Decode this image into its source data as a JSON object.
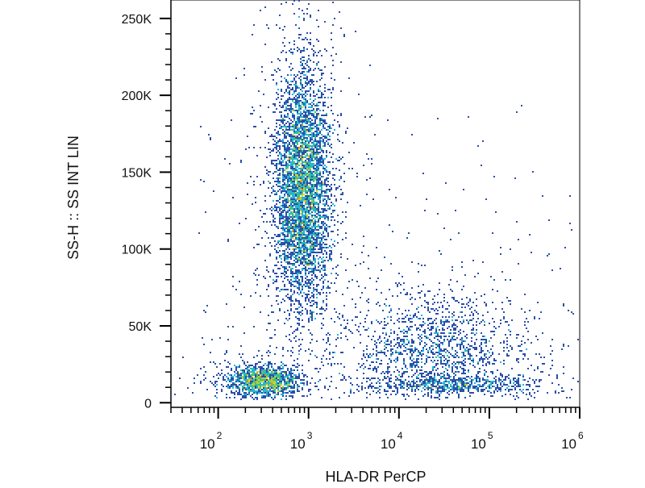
{
  "chart_data": {
    "type": "scatter",
    "subtype": "flow-cytometry-density-dot-plot",
    "title": "",
    "xlabel": "HLA-DR PerCP",
    "ylabel": "SS-H :: SS INT LIN",
    "x_scale": "log",
    "x_range": [
      30,
      1000000
    ],
    "y_scale": "linear",
    "y_range": [
      -3000,
      262000
    ],
    "x_tick_labels": [
      {
        "value": 100,
        "base": "10",
        "exp": "2"
      },
      {
        "value": 1000,
        "base": "10",
        "exp": "3"
      },
      {
        "value": 10000,
        "base": "10",
        "exp": "4"
      },
      {
        "value": 100000,
        "base": "10",
        "exp": "5"
      },
      {
        "value": 1000000,
        "base": "10",
        "exp": "6"
      }
    ],
    "y_tick_labels": [
      {
        "value": 0,
        "label": "0"
      },
      {
        "value": 50000,
        "label": "50K"
      },
      {
        "value": 100000,
        "label": "100K"
      },
      {
        "value": 150000,
        "label": "150K"
      },
      {
        "value": 200000,
        "label": "200K"
      },
      {
        "value": 250000,
        "label": "250K"
      }
    ],
    "density_colors": [
      "#2a4fa8",
      "#3f7fd6",
      "#27b4d8",
      "#37c38a",
      "#b5d334",
      "#f3d21b",
      "#f08a1c",
      "#e02817"
    ],
    "populations": [
      {
        "x_center": 850,
        "y_center": 140000,
        "x_log_sd": 0.15,
        "y_sd": 38000,
        "count": 5000,
        "peak": [
          900,
          135000
        ]
      },
      {
        "x_center": 320,
        "y_center": 14000,
        "x_log_sd": 0.2,
        "y_sd": 5000,
        "count": 1400,
        "peak": [
          330,
          13000
        ]
      },
      {
        "x_center": 25000,
        "y_center": 35000,
        "x_log_sd": 0.5,
        "y_sd": 18000,
        "count": 1500
      },
      {
        "x_center": 40000,
        "y_center": 12000,
        "x_log_sd": 0.5,
        "y_sd": 3000,
        "count": 600
      }
    ]
  }
}
